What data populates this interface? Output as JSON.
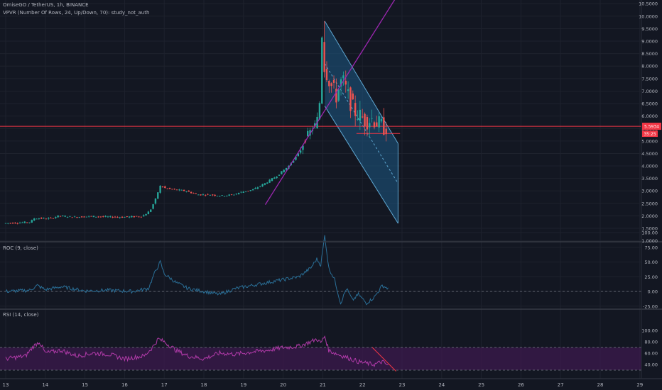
{
  "header": {
    "title": "OmiseGO / TetherUS, 1h, BINANCE",
    "indicator": "VPVR (Number Of Rows, 24, Up/Down, 70): study_not_auth"
  },
  "colors": {
    "background": "#131722",
    "grid": "#1e222d",
    "up": "#26a69a",
    "down": "#ef5350",
    "price_line": "#f23645",
    "trendline": "#9c27b0",
    "channel_fill": "#1e5a85",
    "channel_border": "#5fa8d3",
    "roc_line": "#2a6f97",
    "rsi_line": "#b03aa8",
    "rsi_band": "#3c1a4d",
    "axis_text": "#b2b5be"
  },
  "chart_data": [
    {
      "type": "candlestick",
      "title": "OmiseGO / TetherUS, 1h, BINANCE",
      "x_ticks": [
        "13",
        "14",
        "15",
        "16",
        "17",
        "18",
        "19",
        "20",
        "21",
        "22",
        "23",
        "24",
        "25",
        "26",
        "27",
        "28",
        "29"
      ],
      "y_ticks": [
        "10.5000",
        "10.0000",
        "9.5000",
        "9.0000",
        "8.5000",
        "8.0000",
        "7.5000",
        "7.0000",
        "6.5000",
        "6.0000",
        "5.5000",
        "5.0000",
        "4.5000",
        "4.0000",
        "3.5000",
        "3.0000",
        "2.5000",
        "2.0000",
        "1.5000",
        "1.0000"
      ],
      "price_anchors": [
        [
          13.0,
          1.7
        ],
        [
          13.7,
          1.75
        ],
        [
          13.75,
          1.9
        ],
        [
          14.2,
          1.9
        ],
        [
          14.4,
          2.0
        ],
        [
          14.8,
          1.95
        ],
        [
          15.2,
          1.98
        ],
        [
          15.6,
          1.96
        ],
        [
          16.0,
          1.95
        ],
        [
          16.5,
          1.98
        ],
        [
          16.7,
          2.2
        ],
        [
          16.85,
          2.7
        ],
        [
          16.95,
          3.2
        ],
        [
          17.1,
          3.1
        ],
        [
          17.3,
          3.05
        ],
        [
          17.6,
          3.0
        ],
        [
          17.9,
          2.85
        ],
        [
          18.2,
          2.85
        ],
        [
          18.5,
          2.8
        ],
        [
          18.8,
          2.85
        ],
        [
          19.0,
          2.95
        ],
        [
          19.3,
          3.05
        ],
        [
          19.6,
          3.3
        ],
        [
          19.9,
          3.6
        ],
        [
          20.2,
          4.0
        ],
        [
          20.45,
          4.5
        ],
        [
          20.65,
          5.2
        ],
        [
          20.85,
          5.6
        ],
        [
          20.95,
          6.0
        ],
        [
          21.0,
          6.9
        ],
        [
          21.05,
          9.8
        ],
        [
          21.1,
          8.0
        ],
        [
          21.25,
          7.3
        ],
        [
          21.4,
          6.8
        ],
        [
          21.55,
          7.5
        ],
        [
          21.7,
          6.8
        ],
        [
          21.85,
          6.2
        ],
        [
          22.0,
          6.0
        ],
        [
          22.15,
          5.8
        ],
        [
          22.3,
          5.9
        ],
        [
          22.45,
          5.7
        ],
        [
          22.6,
          5.55
        ]
      ],
      "current_price": "5.5934",
      "countdown": "35:25",
      "trendline": {
        "from": [
          19.55,
          2.45
        ],
        "to": [
          22.95,
          11.0
        ]
      },
      "channel": {
        "upper": {
          "from": [
            21.05,
            9.8
          ],
          "to": [
            22.9,
            4.9
          ]
        },
        "lower": {
          "from": [
            21.05,
            6.4
          ],
          "to": [
            22.9,
            1.7
          ]
        },
        "mid_end": [
          22.9,
          3.3
        ]
      },
      "horizontal_lines": [
        {
          "price": 5.59,
          "style": "solid"
        },
        {
          "price": 5.3,
          "style": "dashed-short"
        }
      ]
    },
    {
      "type": "line",
      "title": "ROC (9, close)",
      "y_ticks": [
        "100.00",
        "75.00",
        "50.00",
        "25.00",
        "0.00",
        "-25.00"
      ],
      "y_range": [
        -30,
        105
      ],
      "anchors": [
        [
          13.0,
          0
        ],
        [
          13.6,
          2
        ],
        [
          13.8,
          10
        ],
        [
          14.0,
          3
        ],
        [
          14.4,
          8
        ],
        [
          15.0,
          1
        ],
        [
          15.6,
          2
        ],
        [
          16.2,
          0
        ],
        [
          16.6,
          5
        ],
        [
          16.75,
          30
        ],
        [
          16.9,
          50
        ],
        [
          17.0,
          30
        ],
        [
          17.3,
          15
        ],
        [
          17.6,
          5
        ],
        [
          18.0,
          0
        ],
        [
          18.4,
          -5
        ],
        [
          18.8,
          5
        ],
        [
          19.2,
          10
        ],
        [
          19.6,
          15
        ],
        [
          20.0,
          20
        ],
        [
          20.4,
          25
        ],
        [
          20.7,
          40
        ],
        [
          20.85,
          55
        ],
        [
          20.95,
          45
        ],
        [
          21.05,
          95
        ],
        [
          21.15,
          40
        ],
        [
          21.3,
          20
        ],
        [
          21.45,
          -20
        ],
        [
          21.6,
          5
        ],
        [
          21.75,
          -15
        ],
        [
          21.9,
          -5
        ],
        [
          22.1,
          -20
        ],
        [
          22.3,
          -10
        ],
        [
          22.5,
          10
        ],
        [
          22.65,
          5
        ]
      ],
      "zero_line": 0
    },
    {
      "type": "line",
      "title": "RSI (14, close)",
      "y_ticks": [
        "100.00",
        "80.00",
        "60.00",
        "40.00"
      ],
      "y_range": [
        26,
        100
      ],
      "band": [
        30,
        70
      ],
      "anchors": [
        [
          13.0,
          50
        ],
        [
          13.5,
          55
        ],
        [
          13.7,
          72
        ],
        [
          13.85,
          80
        ],
        [
          14.0,
          60
        ],
        [
          14.4,
          65
        ],
        [
          14.8,
          55
        ],
        [
          15.2,
          60
        ],
        [
          15.6,
          58
        ],
        [
          16.0,
          50
        ],
        [
          16.5,
          55
        ],
        [
          16.7,
          70
        ],
        [
          16.85,
          85
        ],
        [
          17.0,
          80
        ],
        [
          17.3,
          65
        ],
        [
          17.6,
          55
        ],
        [
          18.0,
          50
        ],
        [
          18.4,
          60
        ],
        [
          18.8,
          58
        ],
        [
          19.2,
          62
        ],
        [
          19.6,
          65
        ],
        [
          20.0,
          70
        ],
        [
          20.4,
          72
        ],
        [
          20.7,
          80
        ],
        [
          20.85,
          85
        ],
        [
          20.95,
          78
        ],
        [
          21.05,
          90
        ],
        [
          21.15,
          65
        ],
        [
          21.3,
          60
        ],
        [
          21.5,
          55
        ],
        [
          21.7,
          50
        ],
        [
          21.9,
          45
        ],
        [
          22.1,
          42
        ],
        [
          22.3,
          40
        ],
        [
          22.5,
          45
        ],
        [
          22.65,
          38
        ]
      ],
      "trendline": {
        "from": [
          22.25,
          70
        ],
        "to": [
          22.85,
          28
        ]
      }
    }
  ]
}
